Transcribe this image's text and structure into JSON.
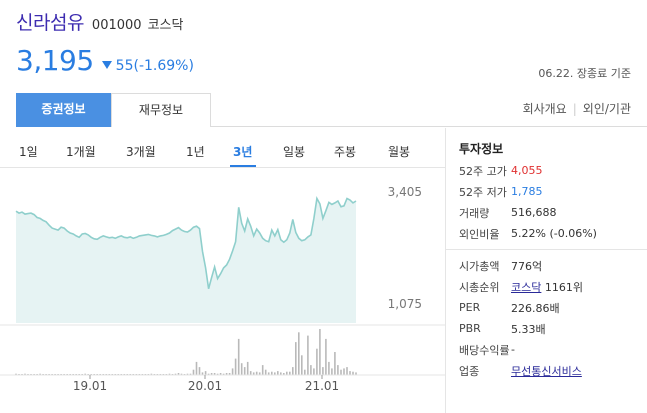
{
  "stock": {
    "name": "신라섬유",
    "code": "001000",
    "market": "코스닥",
    "price": "3,195",
    "change": "55(-1.69%)",
    "as_of": "06.22. 장종료 기준"
  },
  "tabs": {
    "active": "증권정보",
    "inactive": "재무정보",
    "right_links": [
      "회사개요",
      "외인/기관"
    ]
  },
  "periods": [
    "1일",
    "1개월",
    "3개월",
    "1년",
    "3년",
    "일봉",
    "주봉",
    "월봉"
  ],
  "active_period": "3년",
  "chart_data": {
    "type": "area",
    "ylim": [
      1075,
      3405
    ],
    "y_labels": [
      "3,405",
      "1,075"
    ],
    "x_labels": [
      "19.01",
      "20.01",
      "21.01"
    ],
    "price_series": [
      3010,
      2970,
      2990,
      2950,
      2960,
      2970,
      2940,
      2880,
      2860,
      2820,
      2790,
      2720,
      2660,
      2640,
      2620,
      2680,
      2660,
      2600,
      2560,
      2540,
      2500,
      2470,
      2540,
      2550,
      2520,
      2470,
      2440,
      2430,
      2470,
      2500,
      2480,
      2460,
      2470,
      2450,
      2480,
      2500,
      2470,
      2460,
      2480,
      2450,
      2470,
      2500,
      2510,
      2520,
      2530,
      2510,
      2500,
      2480,
      2500,
      2510,
      2530,
      2560,
      2610,
      2640,
      2670,
      2620,
      2590,
      2580,
      2620,
      2680,
      2700,
      2650,
      2180,
      1840,
      1410,
      1640,
      1860,
      1620,
      1720,
      1840,
      1900,
      2020,
      2190,
      2380,
      3090,
      2760,
      2600,
      2850,
      2700,
      2500,
      2640,
      2560,
      2450,
      2400,
      2380,
      2620,
      2500,
      2630,
      2420,
      2370,
      2420,
      2560,
      2840,
      2570,
      2450,
      2400,
      2420,
      2480,
      2520,
      2860,
      3270,
      3160,
      2860,
      3020,
      3190,
      3150,
      3180,
      3220,
      3100,
      3120,
      3270,
      3240,
      3180,
      3220
    ],
    "volume_series": [
      2,
      1,
      1,
      2,
      1,
      1,
      1,
      1,
      2,
      1,
      1,
      1,
      1,
      1,
      1,
      1,
      1,
      1,
      1,
      1,
      1,
      1,
      1,
      2,
      1,
      1,
      1,
      1,
      1,
      1,
      1,
      1,
      1,
      1,
      1,
      1,
      1,
      1,
      1,
      1,
      1,
      1,
      1,
      1,
      1,
      2,
      1,
      1,
      1,
      1,
      1,
      2,
      1,
      2,
      3,
      2,
      1,
      2,
      2,
      8,
      20,
      12,
      4,
      6,
      2,
      3,
      3,
      2,
      3,
      2,
      3,
      3,
      10,
      25,
      55,
      18,
      12,
      20,
      6,
      4,
      5,
      4,
      15,
      8,
      4,
      5,
      4,
      6,
      4,
      3,
      5,
      5,
      12,
      50,
      65,
      30,
      8,
      60,
      15,
      10,
      40,
      70,
      12,
      55,
      20,
      10,
      35,
      15,
      8,
      10,
      12,
      6,
      5,
      4
    ]
  },
  "info": {
    "title": "투자정보",
    "rows1": [
      {
        "label": "52주 고가",
        "value": "4,055",
        "color": "#e03030"
      },
      {
        "label": "52주 저가",
        "value": "1,785",
        "color": "#2a7de1"
      },
      {
        "label": "거래량",
        "value": "516,688",
        "color": "#333333"
      },
      {
        "label": "외인비율",
        "value": "5.22% (-0.06%)",
        "color": "#333333"
      }
    ],
    "rows2": [
      {
        "label": "시가총액",
        "value": "776억"
      },
      {
        "label": "시총순위",
        "link": "코스닥",
        "value": "1161위"
      },
      {
        "label": "PER",
        "value": "226.86배"
      },
      {
        "label": "PBR",
        "value": "5.33배"
      },
      {
        "label": "배당수익률",
        "value": "-"
      },
      {
        "label": "업종",
        "link": "무선통신서비스",
        "value": ""
      }
    ]
  }
}
